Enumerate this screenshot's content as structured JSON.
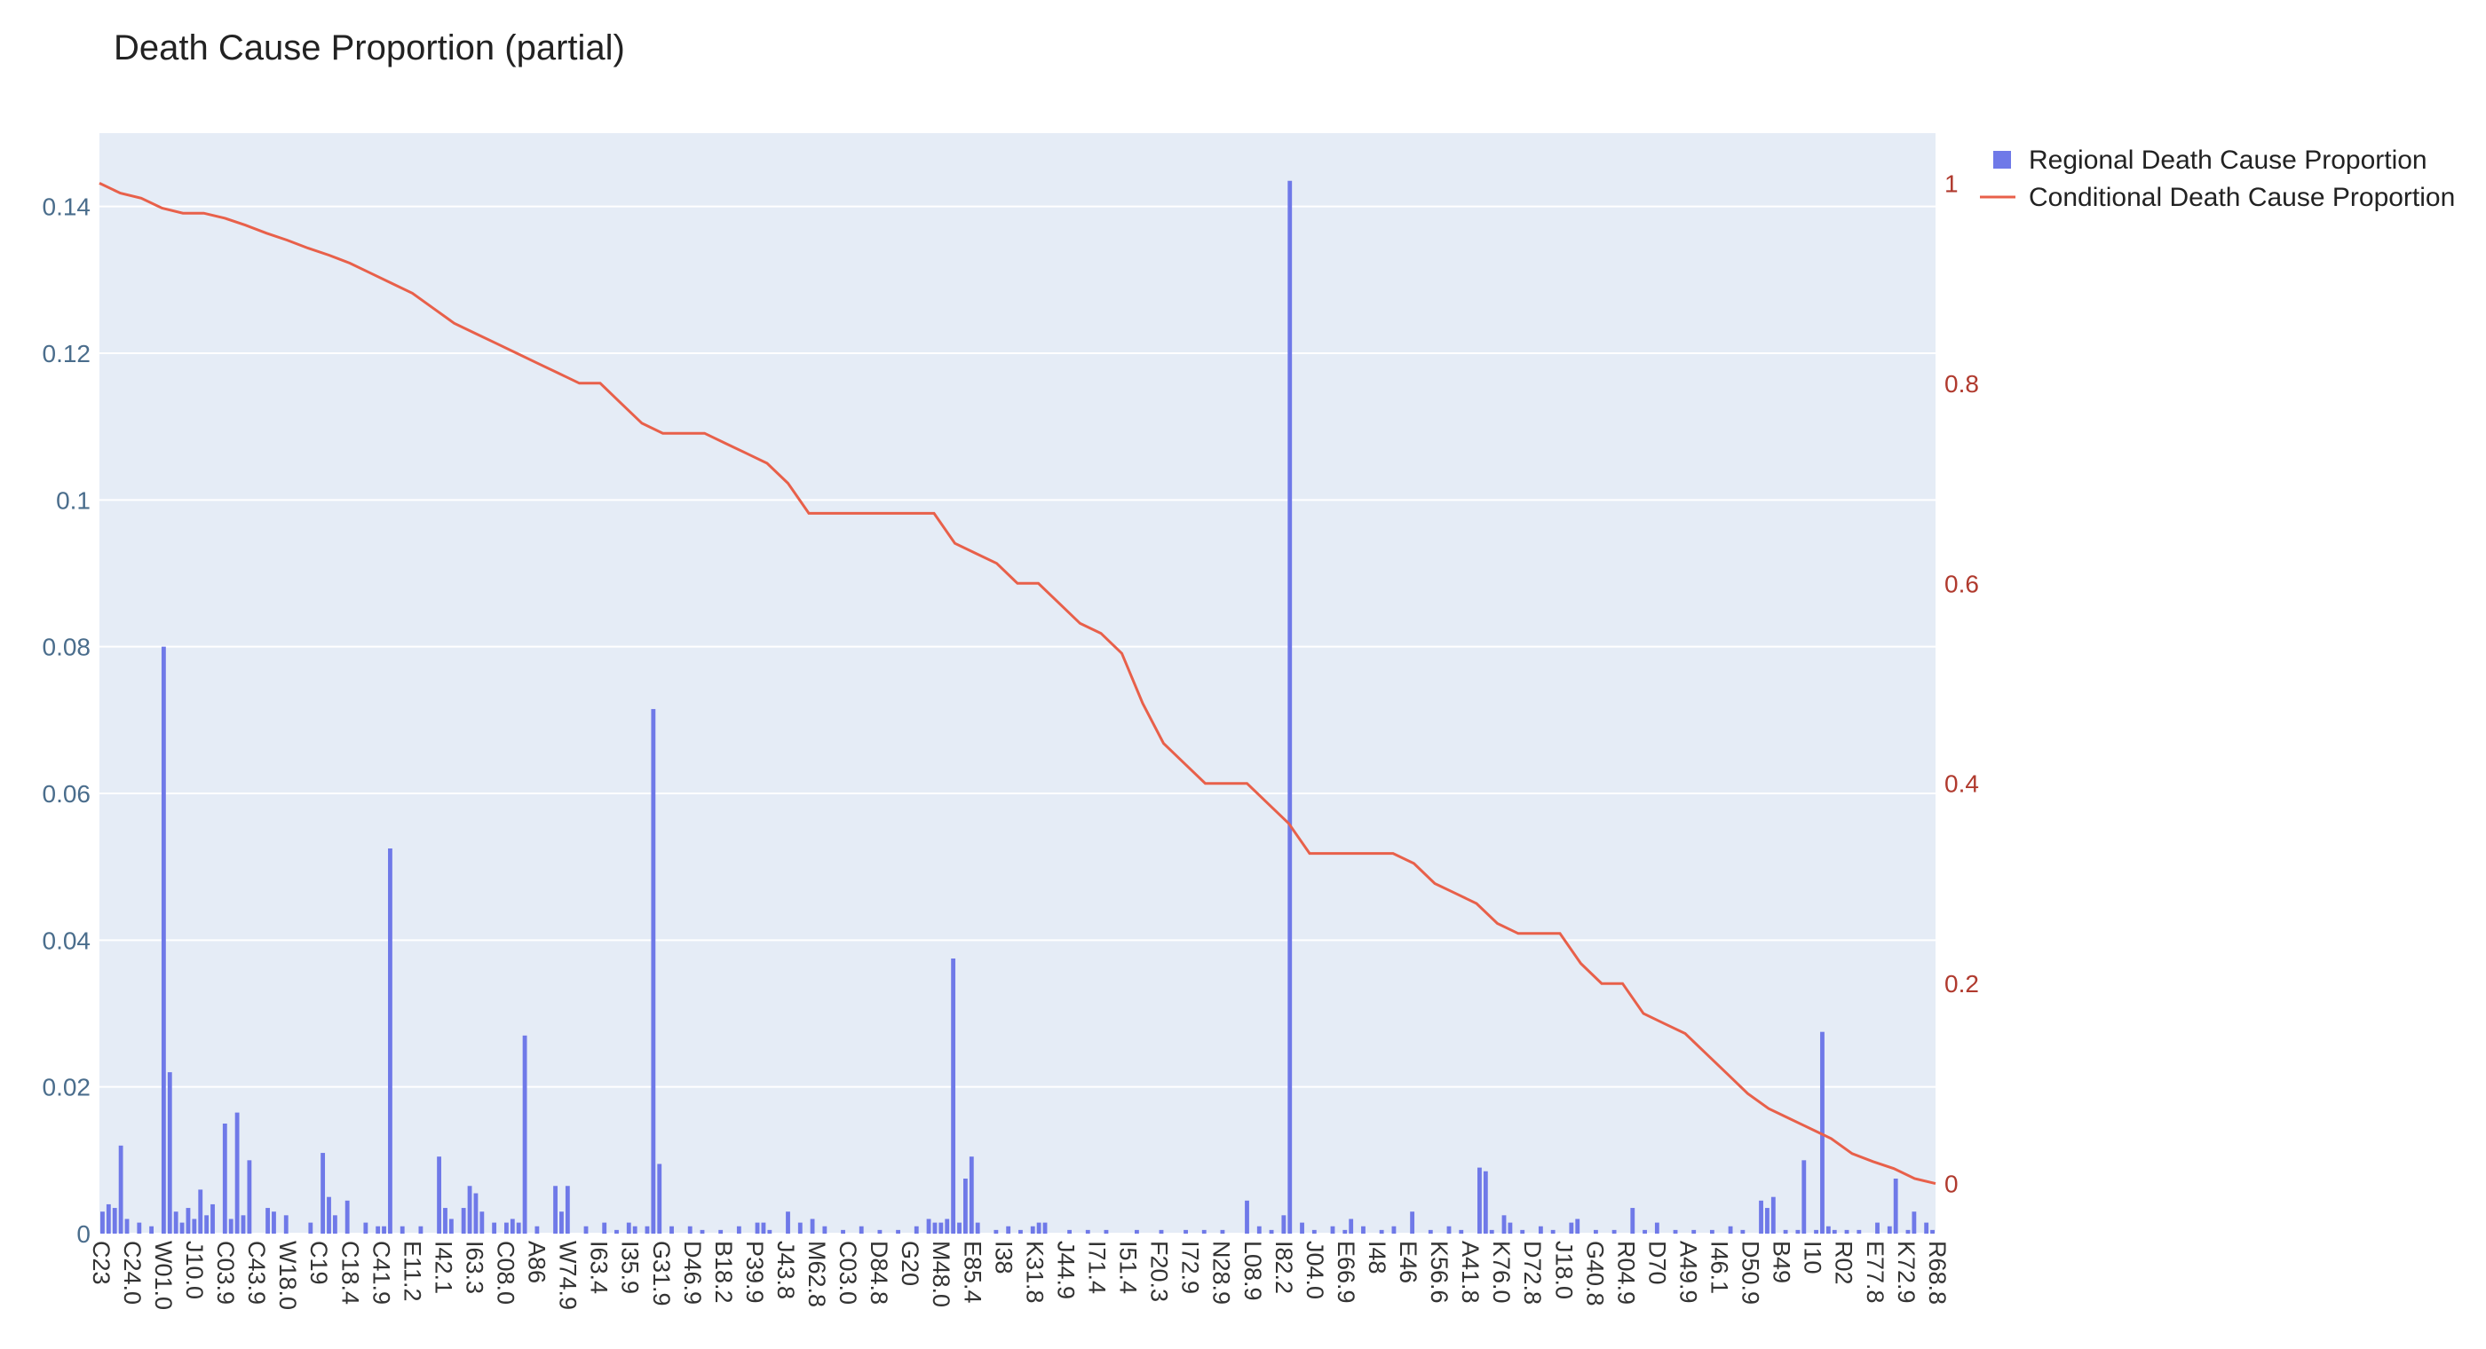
{
  "chart_data": {
    "type": "bar",
    "title": "Death Cause Proportion (partial)",
    "colors": {
      "bar": "#6f79e8",
      "line": "#e8604a",
      "plot_bg": "#e5ecf6",
      "grid": "#ffffff",
      "left_tick": "#4a6d8c",
      "right_tick": "#b03a2e"
    },
    "legend": {
      "position": "top-right",
      "items": [
        {
          "name": "Regional Death Cause Proportion",
          "marker": "square"
        },
        {
          "name": "Conditional Death Cause Proportion",
          "marker": "line"
        }
      ]
    },
    "y_left": {
      "range": [
        0,
        0.15
      ],
      "ticks": [
        0,
        0.02,
        0.04,
        0.06,
        0.08,
        0.1,
        0.12,
        0.14
      ],
      "tick_labels": [
        "0",
        "0.02",
        "0.04",
        "0.06",
        "0.08",
        "0.1",
        "0.12",
        "0.14"
      ]
    },
    "y_right": {
      "range": [
        -0.05,
        1.05
      ],
      "ticks": [
        0,
        0.2,
        0.4,
        0.6,
        0.8,
        1
      ],
      "tick_labels": [
        "0",
        "0.2",
        "0.4",
        "0.6",
        "0.8",
        "1"
      ]
    },
    "x_categories": [
      "C23",
      "C24.0",
      "W01.0",
      "J10.0",
      "C03.9",
      "C43.9",
      "W18.0",
      "C19",
      "C18.4",
      "C41.9",
      "E11.2",
      "I42.1",
      "I63.3",
      "C08.0",
      "A86",
      "W74.9",
      "I63.4",
      "I35.9",
      "G31.9",
      "D46.9",
      "B18.2",
      "P39.9",
      "J43.8",
      "M62.8",
      "C03.0",
      "D84.8",
      "G20",
      "M48.0",
      "E85.4",
      "I38",
      "K31.8",
      "J44.9",
      "I71.4",
      "I51.4",
      "F20.3",
      "I72.9",
      "N28.9",
      "L08.9",
      "I82.2",
      "J04.0",
      "E66.9",
      "I48",
      "E46",
      "K56.6",
      "A41.8",
      "K76.0",
      "D72.8",
      "J18.0",
      "G40.8",
      "R04.9",
      "D70",
      "A49.9",
      "I46.1",
      "D50.9",
      "B49",
      "I10",
      "R02",
      "E77.8",
      "K72.9",
      "R68.8"
    ],
    "series": [
      {
        "name": "Regional Death Cause Proportion",
        "type": "bar",
        "bar_count": 300,
        "bars": [
          [
            0,
            0.003
          ],
          [
            1,
            0.004
          ],
          [
            2,
            0.0035
          ],
          [
            3,
            0.012
          ],
          [
            4,
            0.002
          ],
          [
            6,
            0.0015
          ],
          [
            8,
            0.001
          ],
          [
            10,
            0.08
          ],
          [
            11,
            0.022
          ],
          [
            12,
            0.003
          ],
          [
            13,
            0.0015
          ],
          [
            14,
            0.0035
          ],
          [
            15,
            0.002
          ],
          [
            16,
            0.006
          ],
          [
            17,
            0.0025
          ],
          [
            18,
            0.004
          ],
          [
            20,
            0.015
          ],
          [
            21,
            0.002
          ],
          [
            22,
            0.0165
          ],
          [
            23,
            0.0025
          ],
          [
            24,
            0.01
          ],
          [
            27,
            0.0035
          ],
          [
            28,
            0.003
          ],
          [
            30,
            0.0025
          ],
          [
            34,
            0.0015
          ],
          [
            36,
            0.011
          ],
          [
            37,
            0.005
          ],
          [
            38,
            0.0025
          ],
          [
            40,
            0.0045
          ],
          [
            43,
            0.0015
          ],
          [
            45,
            0.001
          ],
          [
            46,
            0.001
          ],
          [
            47,
            0.0525
          ],
          [
            49,
            0.001
          ],
          [
            52,
            0.001
          ],
          [
            55,
            0.0105
          ],
          [
            56,
            0.0035
          ],
          [
            57,
            0.002
          ],
          [
            59,
            0.0035
          ],
          [
            60,
            0.0065
          ],
          [
            61,
            0.0055
          ],
          [
            62,
            0.003
          ],
          [
            64,
            0.0015
          ],
          [
            66,
            0.0015
          ],
          [
            67,
            0.002
          ],
          [
            68,
            0.0015
          ],
          [
            69,
            0.027
          ],
          [
            71,
            0.001
          ],
          [
            74,
            0.0065
          ],
          [
            75,
            0.003
          ],
          [
            76,
            0.0065
          ],
          [
            79,
            0.001
          ],
          [
            82,
            0.0015
          ],
          [
            84,
            0.0005
          ],
          [
            86,
            0.0015
          ],
          [
            87,
            0.001
          ],
          [
            89,
            0.001
          ],
          [
            90,
            0.0715
          ],
          [
            91,
            0.0095
          ],
          [
            93,
            0.001
          ],
          [
            96,
            0.001
          ],
          [
            98,
            0.0005
          ],
          [
            101,
            0.0005
          ],
          [
            104,
            0.001
          ],
          [
            107,
            0.0015
          ],
          [
            108,
            0.0015
          ],
          [
            109,
            0.0005
          ],
          [
            112,
            0.003
          ],
          [
            114,
            0.0015
          ],
          [
            116,
            0.002
          ],
          [
            118,
            0.001
          ],
          [
            121,
            0.0005
          ],
          [
            124,
            0.001
          ],
          [
            127,
            0.0005
          ],
          [
            130,
            0.0005
          ],
          [
            133,
            0.001
          ],
          [
            135,
            0.002
          ],
          [
            136,
            0.0015
          ],
          [
            137,
            0.0015
          ],
          [
            138,
            0.002
          ],
          [
            139,
            0.0375
          ],
          [
            140,
            0.0015
          ],
          [
            141,
            0.0075
          ],
          [
            142,
            0.0105
          ],
          [
            143,
            0.0015
          ],
          [
            146,
            0.0005
          ],
          [
            148,
            0.001
          ],
          [
            150,
            0.0005
          ],
          [
            152,
            0.001
          ],
          [
            153,
            0.0015
          ],
          [
            154,
            0.0015
          ],
          [
            158,
            0.0005
          ],
          [
            161,
            0.0005
          ],
          [
            164,
            0.0005
          ],
          [
            169,
            0.0005
          ],
          [
            173,
            0.0005
          ],
          [
            177,
            0.0005
          ],
          [
            180,
            0.0005
          ],
          [
            183,
            0.0005
          ],
          [
            187,
            0.0045
          ],
          [
            189,
            0.001
          ],
          [
            191,
            0.0005
          ],
          [
            193,
            0.0025
          ],
          [
            194,
            0.1435
          ],
          [
            196,
            0.0015
          ],
          [
            198,
            0.0005
          ],
          [
            201,
            0.001
          ],
          [
            203,
            0.0005
          ],
          [
            204,
            0.002
          ],
          [
            206,
            0.001
          ],
          [
            209,
            0.0005
          ],
          [
            211,
            0.001
          ],
          [
            214,
            0.003
          ],
          [
            217,
            0.0005
          ],
          [
            220,
            0.001
          ],
          [
            222,
            0.0005
          ],
          [
            225,
            0.009
          ],
          [
            226,
            0.0085
          ],
          [
            227,
            0.0005
          ],
          [
            229,
            0.0025
          ],
          [
            230,
            0.0015
          ],
          [
            232,
            0.0005
          ],
          [
            235,
            0.001
          ],
          [
            237,
            0.0005
          ],
          [
            240,
            0.0015
          ],
          [
            241,
            0.002
          ],
          [
            244,
            0.0005
          ],
          [
            247,
            0.0005
          ],
          [
            250,
            0.0035
          ],
          [
            252,
            0.0005
          ],
          [
            254,
            0.0015
          ],
          [
            257,
            0.0005
          ],
          [
            260,
            0.0005
          ],
          [
            263,
            0.0005
          ],
          [
            266,
            0.001
          ],
          [
            268,
            0.0005
          ],
          [
            271,
            0.0045
          ],
          [
            272,
            0.0035
          ],
          [
            273,
            0.005
          ],
          [
            275,
            0.0005
          ],
          [
            277,
            0.0005
          ],
          [
            278,
            0.01
          ],
          [
            280,
            0.0005
          ],
          [
            281,
            0.0275
          ],
          [
            282,
            0.001
          ],
          [
            283,
            0.0005
          ],
          [
            285,
            0.0005
          ],
          [
            287,
            0.0005
          ],
          [
            290,
            0.0015
          ],
          [
            292,
            0.001
          ],
          [
            293,
            0.0075
          ],
          [
            295,
            0.0005
          ],
          [
            296,
            0.003
          ],
          [
            298,
            0.0015
          ],
          [
            299,
            0.0005
          ]
        ]
      },
      {
        "name": "Conditional Death Cause Proportion",
        "type": "line",
        "points": [
          [
            0,
            1.0
          ],
          [
            1,
            0.99
          ],
          [
            2,
            0.985
          ],
          [
            3,
            0.975
          ],
          [
            4,
            0.97
          ],
          [
            5,
            0.97
          ],
          [
            6,
            0.965
          ],
          [
            7,
            0.958
          ],
          [
            8,
            0.95
          ],
          [
            9,
            0.943
          ],
          [
            10,
            0.935
          ],
          [
            11,
            0.928
          ],
          [
            12,
            0.92
          ],
          [
            13,
            0.91
          ],
          [
            14,
            0.9
          ],
          [
            15,
            0.89
          ],
          [
            16,
            0.875
          ],
          [
            17,
            0.86
          ],
          [
            18,
            0.85
          ],
          [
            19,
            0.84
          ],
          [
            20,
            0.83
          ],
          [
            21,
            0.82
          ],
          [
            22,
            0.81
          ],
          [
            23,
            0.8
          ],
          [
            24,
            0.8
          ],
          [
            25,
            0.78
          ],
          [
            26,
            0.76
          ],
          [
            27,
            0.75
          ],
          [
            28,
            0.75
          ],
          [
            29,
            0.75
          ],
          [
            30,
            0.74
          ],
          [
            31,
            0.73
          ],
          [
            32,
            0.72
          ],
          [
            33,
            0.7
          ],
          [
            34,
            0.67
          ],
          [
            35,
            0.67
          ],
          [
            36,
            0.67
          ],
          [
            37,
            0.67
          ],
          [
            38,
            0.67
          ],
          [
            39,
            0.67
          ],
          [
            40,
            0.67
          ],
          [
            41,
            0.64
          ],
          [
            42,
            0.63
          ],
          [
            43,
            0.62
          ],
          [
            44,
            0.6
          ],
          [
            45,
            0.6
          ],
          [
            46,
            0.58
          ],
          [
            47,
            0.56
          ],
          [
            48,
            0.55
          ],
          [
            49,
            0.53
          ],
          [
            50,
            0.48
          ],
          [
            51,
            0.44
          ],
          [
            52,
            0.42
          ],
          [
            53,
            0.4
          ],
          [
            54,
            0.4
          ],
          [
            55,
            0.4
          ],
          [
            56,
            0.38
          ],
          [
            57,
            0.36
          ],
          [
            58,
            0.33
          ],
          [
            59,
            0.33
          ],
          [
            60,
            0.33
          ],
          [
            61,
            0.33
          ],
          [
            62,
            0.33
          ],
          [
            63,
            0.32
          ],
          [
            64,
            0.3
          ],
          [
            65,
            0.29
          ],
          [
            66,
            0.28
          ],
          [
            67,
            0.26
          ],
          [
            68,
            0.25
          ],
          [
            69,
            0.25
          ],
          [
            70,
            0.25
          ],
          [
            71,
            0.22
          ],
          [
            72,
            0.2
          ],
          [
            73,
            0.2
          ],
          [
            74,
            0.17
          ],
          [
            75,
            0.16
          ],
          [
            76,
            0.15
          ],
          [
            77,
            0.13
          ],
          [
            78,
            0.11
          ],
          [
            79,
            0.09
          ],
          [
            80,
            0.075
          ],
          [
            81,
            0.065
          ],
          [
            82,
            0.055
          ],
          [
            83,
            0.045
          ],
          [
            84,
            0.03
          ],
          [
            85,
            0.022
          ],
          [
            86,
            0.015
          ],
          [
            87,
            0.005
          ],
          [
            88,
            0.0
          ]
        ]
      }
    ]
  }
}
